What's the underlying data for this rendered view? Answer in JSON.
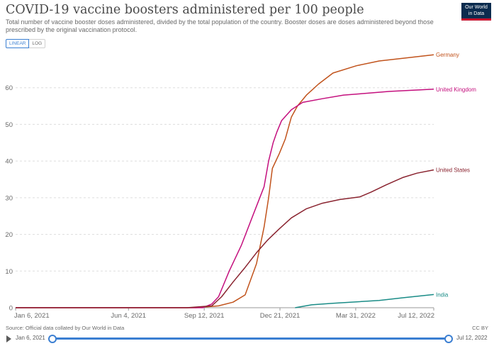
{
  "header": {
    "title": "COVID-19 vaccine boosters administered per 100 people",
    "subtitle": "Total number of vaccine booster doses administered, divided by the total population of the country. Booster doses are doses administered beyond those prescribed by the original vaccination protocol.",
    "logo_line1": "Our World",
    "logo_line2": "in Data"
  },
  "controls": {
    "linear_label": "LINEAR",
    "log_label": "LOG",
    "active_scale": "linear"
  },
  "footer": {
    "source": "Source: Official data collated by Our World in Data",
    "license": "CC BY"
  },
  "timeline": {
    "start": "Jan 6, 2021",
    "end": "Jul 12, 2022",
    "range_fraction": [
      0,
      1
    ]
  },
  "colors": {
    "Germany": "#c1531c",
    "United Kingdom": "#c4107e",
    "United States": "#8a2430",
    "India": "#1a8c87",
    "accent": "#3b7fd2"
  },
  "chart_data": {
    "type": "line",
    "title": "COVID-19 vaccine boosters administered per 100 people",
    "xlabel": "",
    "ylabel": "",
    "x_range": [
      "2021-01-06",
      "2022-07-12"
    ],
    "ylim": [
      0,
      70
    ],
    "y_ticks": [
      0,
      10,
      20,
      30,
      40,
      50,
      60
    ],
    "x_tick_labels": [
      "Jan 6, 2021",
      "Jun 4, 2021",
      "Sep 12, 2021",
      "Dec 21, 2021",
      "Mar 31, 2022",
      "Jul 12, 2022"
    ],
    "x_tick_dates": [
      "2021-01-06",
      "2021-06-04",
      "2021-09-12",
      "2021-12-21",
      "2022-03-31",
      "2022-07-12"
    ],
    "grid": "horizontal dashed",
    "legend": "line-end labels",
    "series": [
      {
        "name": "Germany",
        "points": [
          [
            "2021-01-06",
            0
          ],
          [
            "2021-09-01",
            0
          ],
          [
            "2021-10-01",
            0.5
          ],
          [
            "2021-10-20",
            1.5
          ],
          [
            "2021-11-05",
            3.5
          ],
          [
            "2021-11-20",
            12
          ],
          [
            "2021-11-30",
            22
          ],
          [
            "2021-12-06",
            30
          ],
          [
            "2021-12-11",
            38
          ],
          [
            "2021-12-20",
            42
          ],
          [
            "2021-12-28",
            46
          ],
          [
            "2022-01-05",
            52
          ],
          [
            "2022-01-13",
            55
          ],
          [
            "2022-01-25",
            58
          ],
          [
            "2022-02-10",
            61
          ],
          [
            "2022-03-01",
            64
          ],
          [
            "2022-04-01",
            66
          ],
          [
            "2022-05-01",
            67.3
          ],
          [
            "2022-06-01",
            68
          ],
          [
            "2022-07-12",
            69
          ]
        ]
      },
      {
        "name": "United Kingdom",
        "points": [
          [
            "2021-01-06",
            0
          ],
          [
            "2021-09-10",
            0
          ],
          [
            "2021-09-22",
            1
          ],
          [
            "2021-10-01",
            3
          ],
          [
            "2021-10-15",
            10
          ],
          [
            "2021-10-31",
            17
          ],
          [
            "2021-11-15",
            25
          ],
          [
            "2021-11-30",
            33
          ],
          [
            "2021-12-06",
            40
          ],
          [
            "2021-12-12",
            45
          ],
          [
            "2021-12-17",
            48
          ],
          [
            "2021-12-23",
            51
          ],
          [
            "2022-01-05",
            54
          ],
          [
            "2022-01-20",
            56
          ],
          [
            "2022-02-15",
            57
          ],
          [
            "2022-03-15",
            58
          ],
          [
            "2022-04-15",
            58.5
          ],
          [
            "2022-05-15",
            59
          ],
          [
            "2022-07-12",
            59.6
          ]
        ]
      },
      {
        "name": "United States",
        "points": [
          [
            "2021-01-06",
            0
          ],
          [
            "2021-08-20",
            0
          ],
          [
            "2021-09-22",
            0.5
          ],
          [
            "2021-10-05",
            3
          ],
          [
            "2021-10-20",
            7
          ],
          [
            "2021-11-05",
            11
          ],
          [
            "2021-11-20",
            15
          ],
          [
            "2021-12-05",
            18.5
          ],
          [
            "2021-12-20",
            21.5
          ],
          [
            "2022-01-05",
            24.5
          ],
          [
            "2022-01-25",
            27
          ],
          [
            "2022-02-15",
            28.5
          ],
          [
            "2022-03-10",
            29.5
          ],
          [
            "2022-04-05",
            30.2
          ],
          [
            "2022-04-20",
            31.5
          ],
          [
            "2022-05-10",
            33.5
          ],
          [
            "2022-06-01",
            35.5
          ],
          [
            "2022-06-20",
            36.7
          ],
          [
            "2022-07-12",
            37.6
          ]
        ]
      },
      {
        "name": "India",
        "points": [
          [
            "2022-01-10",
            0
          ],
          [
            "2022-02-01",
            0.8
          ],
          [
            "2022-03-01",
            1.2
          ],
          [
            "2022-04-01",
            1.6
          ],
          [
            "2022-05-01",
            2.0
          ],
          [
            "2022-06-01",
            2.7
          ],
          [
            "2022-07-12",
            3.6
          ]
        ]
      }
    ]
  }
}
